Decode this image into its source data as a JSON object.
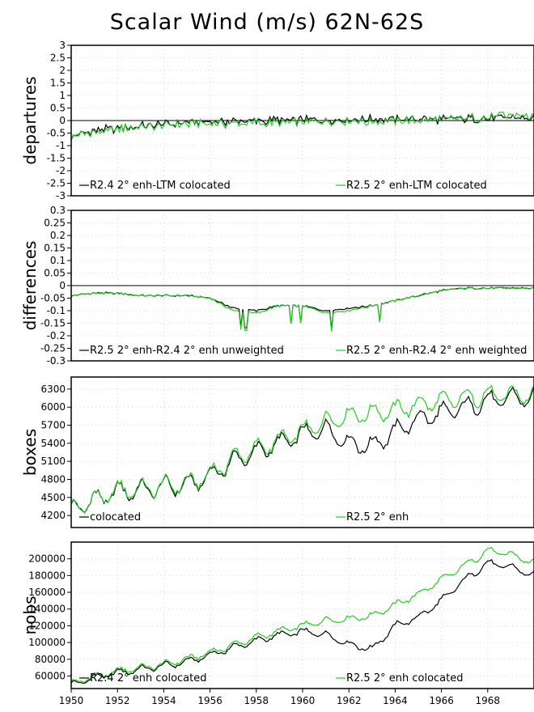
{
  "title": "Scalar Wind (m/s) 62N-62S",
  "colors": {
    "series_black": "#000000",
    "series_green": "#22cc22",
    "zero_line": "#000000",
    "grid": "#cccccc"
  },
  "chart_data": [
    {
      "type": "line",
      "ylabel": "departures",
      "ylim": [
        -3,
        3
      ],
      "yticks": [
        3,
        2.5,
        2,
        1.5,
        1,
        0.5,
        0,
        -0.5,
        -1,
        -1.5,
        -2,
        -2.5,
        -3
      ],
      "xlim": [
        1950,
        1970
      ],
      "zero_line": true,
      "series": [
        {
          "name": "R2.4 2° enh-LTM colocated",
          "x": [
            1950,
            1951,
            1952,
            1953,
            1954,
            1955,
            1956,
            1957,
            1958,
            1959,
            1960,
            1961,
            1962,
            1963,
            1964,
            1965,
            1966,
            1967,
            1968,
            1969,
            1970
          ],
          "values": [
            -0.62,
            -0.42,
            -0.3,
            -0.22,
            -0.15,
            -0.1,
            -0.06,
            -0.04,
            -0.02,
            0.0,
            0.03,
            0.04,
            0.05,
            0.04,
            0.05,
            0.06,
            0.05,
            0.07,
            0.08,
            0.1,
            0.08
          ]
        },
        {
          "name": "R2.5 2° enh-LTM colocated",
          "x": [
            1950,
            1951,
            1952,
            1953,
            1954,
            1955,
            1956,
            1957,
            1958,
            1959,
            1960,
            1961,
            1962,
            1963,
            1964,
            1965,
            1966,
            1967,
            1968,
            1969,
            1970
          ],
          "values": [
            -0.64,
            -0.45,
            -0.33,
            -0.25,
            -0.18,
            -0.14,
            -0.12,
            -0.12,
            -0.1,
            -0.08,
            -0.05,
            -0.06,
            -0.04,
            -0.04,
            -0.01,
            0.02,
            0.05,
            0.09,
            0.14,
            0.2,
            0.18
          ]
        }
      ]
    },
    {
      "type": "line",
      "ylabel": "differences",
      "ylim": [
        -0.3,
        0.3
      ],
      "yticks": [
        0.3,
        0.25,
        0.2,
        0.15,
        0.1,
        0.05,
        0,
        -0.05,
        -0.1,
        -0.15,
        -0.2,
        -0.25,
        -0.3
      ],
      "xlim": [
        1950,
        1970
      ],
      "zero_line": true,
      "series": [
        {
          "name": "R2.5 2° enh-R2.4 2° enh unweighted",
          "x": [
            1950,
            1951,
            1952,
            1953,
            1954,
            1955,
            1956,
            1957,
            1958,
            1959,
            1960,
            1961,
            1962,
            1963,
            1964,
            1965,
            1966,
            1967,
            1968,
            1969,
            1970
          ],
          "values": [
            -0.04,
            -0.03,
            -0.03,
            -0.04,
            -0.04,
            -0.04,
            -0.05,
            -0.09,
            -0.1,
            -0.08,
            -0.08,
            -0.1,
            -0.09,
            -0.08,
            -0.06,
            -0.04,
            -0.02,
            -0.01,
            -0.01,
            -0.01,
            -0.01
          ]
        },
        {
          "name": "R2.5 2° enh-R2.4 2° enh weighted",
          "x": [
            1950,
            1951,
            1952,
            1953,
            1954,
            1955,
            1956,
            1957,
            1958,
            1959,
            1960,
            1961,
            1962,
            1963,
            1964,
            1965,
            1966,
            1967,
            1968,
            1969,
            1970
          ],
          "values": [
            -0.04,
            -0.03,
            -0.03,
            -0.04,
            -0.04,
            -0.04,
            -0.05,
            -0.1,
            -0.11,
            -0.08,
            -0.08,
            -0.11,
            -0.1,
            -0.08,
            -0.06,
            -0.04,
            -0.02,
            -0.01,
            -0.01,
            -0.01,
            -0.01
          ]
        }
      ]
    },
    {
      "type": "line",
      "ylabel": "boxes",
      "ylim": [
        4000,
        6500
      ],
      "yticks": [
        6300,
        6000,
        5700,
        5400,
        5100,
        4800,
        4500,
        4200
      ],
      "xlim": [
        1950,
        1970
      ],
      "zero_line": false,
      "series": [
        {
          "name": "colocated",
          "x": [
            1950,
            1951,
            1952,
            1953,
            1954,
            1955,
            1956,
            1957,
            1958,
            1959,
            1960,
            1961,
            1962,
            1963,
            1964,
            1965,
            1966,
            1967,
            1968,
            1969,
            1970
          ],
          "values": [
            4300,
            4450,
            4600,
            4620,
            4680,
            4700,
            4850,
            5100,
            5250,
            5400,
            5550,
            5650,
            5400,
            5350,
            5600,
            5800,
            5900,
            6000,
            6100,
            6150,
            6150
          ]
        },
        {
          "name": "R2.5 2° enh",
          "x": [
            1950,
            1951,
            1952,
            1953,
            1954,
            1955,
            1956,
            1957,
            1958,
            1959,
            1960,
            1961,
            1962,
            1963,
            1964,
            1965,
            1966,
            1967,
            1968,
            1969,
            1970
          ],
          "values": [
            4300,
            4460,
            4620,
            4640,
            4700,
            4720,
            4880,
            5150,
            5300,
            5450,
            5600,
            5750,
            5850,
            5900,
            5950,
            6050,
            6100,
            6150,
            6200,
            6200,
            6200
          ]
        }
      ]
    },
    {
      "type": "line",
      "ylabel": "nobs",
      "ylim": [
        45000,
        220000
      ],
      "yticks": [
        200000,
        180000,
        160000,
        140000,
        120000,
        100000,
        80000,
        60000
      ],
      "xlim": [
        1950,
        1970
      ],
      "zero_line": false,
      "series": [
        {
          "name": "R2.4 2° enh colocated",
          "x": [
            1950,
            1951,
            1952,
            1953,
            1954,
            1955,
            1956,
            1957,
            1958,
            1959,
            1960,
            1961,
            1962,
            1963,
            1964,
            1965,
            1966,
            1967,
            1968,
            1969,
            1970
          ],
          "values": [
            50000,
            58000,
            64000,
            68000,
            72000,
            77000,
            85000,
            94000,
            102000,
            109000,
            113000,
            110000,
            98000,
            92000,
            120000,
            130000,
            150000,
            175000,
            195000,
            190000,
            180000
          ]
        },
        {
          "name": "R2.5 2° enh colocated",
          "x": [
            1950,
            1951,
            1952,
            1953,
            1954,
            1955,
            1956,
            1957,
            1958,
            1959,
            1960,
            1961,
            1962,
            1963,
            1964,
            1965,
            1966,
            1967,
            1968,
            1969,
            1970
          ],
          "values": [
            51000,
            60000,
            66000,
            70000,
            74000,
            80000,
            88000,
            97000,
            106000,
            114000,
            120000,
            126000,
            128000,
            132000,
            145000,
            158000,
            175000,
            192000,
            210000,
            205000,
            195000
          ]
        }
      ]
    }
  ],
  "x_ticks": [
    "1950",
    "1952",
    "1954",
    "1956",
    "1958",
    "1960",
    "1962",
    "1964",
    "1966",
    "1968"
  ]
}
